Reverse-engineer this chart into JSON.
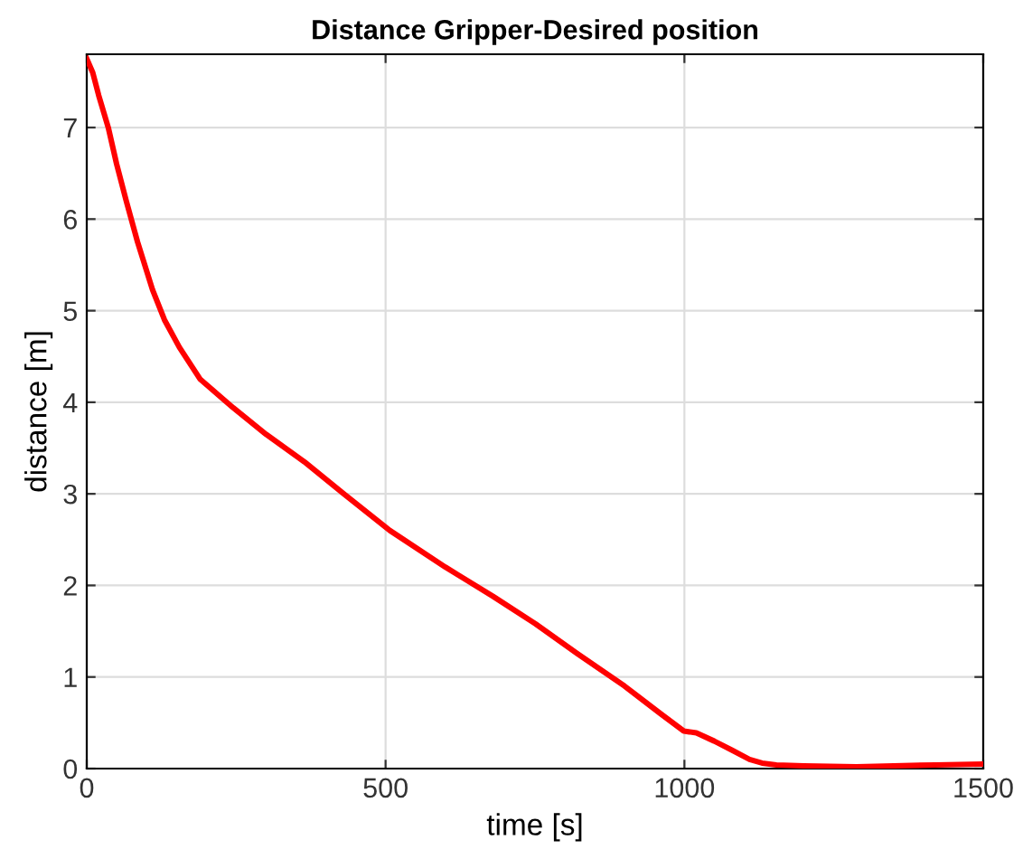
{
  "chart_data": {
    "type": "line",
    "title": "Distance Gripper-Desired position",
    "xlabel": "time [s]",
    "ylabel": "distance [m]",
    "series": [
      {
        "color": "#ff0000",
        "x": [
          0,
          10,
          20,
          36,
          50,
          66,
          85,
          110,
          130,
          155,
          190,
          245,
          300,
          364,
          430,
          507,
          600,
          680,
          751,
          820,
          900,
          960,
          999,
          1020,
          1050,
          1080,
          1109,
          1130,
          1154,
          1200,
          1288,
          1350,
          1420,
          1500
        ],
        "values": [
          7.75,
          7.6,
          7.35,
          7.0,
          6.6,
          6.2,
          5.75,
          5.23,
          4.9,
          4.6,
          4.25,
          3.94,
          3.65,
          3.35,
          3.0,
          2.6,
          2.2,
          1.88,
          1.58,
          1.26,
          0.9,
          0.6,
          0.41,
          0.39,
          0.3,
          0.2,
          0.1,
          0.06,
          0.04,
          0.03,
          0.02,
          0.03,
          0.04,
          0.05
        ]
      }
    ],
    "xlim": [
      0,
      1500
    ],
    "ylim": [
      0,
      7.8
    ],
    "xticks": [
      0,
      500,
      1000,
      1500
    ],
    "yticks": [
      0,
      1,
      2,
      3,
      4,
      5,
      6,
      7
    ],
    "grid": true,
    "legend": false,
    "line_style": "solid",
    "marker": "none"
  }
}
